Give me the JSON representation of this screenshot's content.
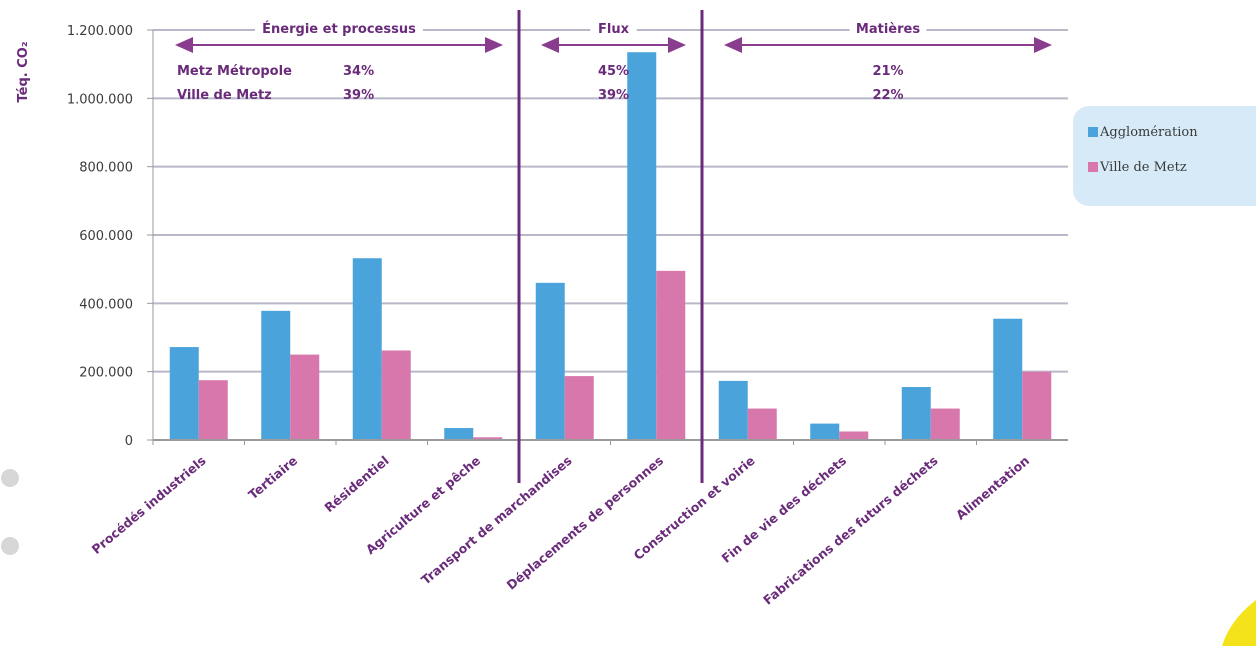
{
  "chart_data": {
    "type": "bar",
    "ylabel": "Téq. CO₂",
    "ylim": [
      0,
      1200000
    ],
    "yticks": [
      {
        "value": 0,
        "label": "0"
      },
      {
        "value": 200000,
        "label": "200.000"
      },
      {
        "value": 400000,
        "label": "400.000"
      },
      {
        "value": 600000,
        "label": "600.000"
      },
      {
        "value": 800000,
        "label": "800.000"
      },
      {
        "value": 1000000,
        "label": "1.000.000"
      },
      {
        "value": 1200000,
        "label": "1.200.000"
      }
    ],
    "grid": true,
    "legend_position": "right",
    "categories": [
      "Procédés industriels",
      "Tertiaire",
      "Résidentiel",
      "Agriculture et pêche",
      "Transport de marchandises",
      "Déplacements de personnes",
      "Construction et voirie",
      "Fin de vie des déchets",
      "Fabrications des futurs déchets",
      "Alimentation"
    ],
    "series": [
      {
        "name": "Agglomération",
        "color": "#4aa3db",
        "values": [
          272000,
          378000,
          532000,
          35000,
          460000,
          1135000,
          173000,
          48000,
          155000,
          355000
        ]
      },
      {
        "name": "Ville de Metz",
        "color": "#d877ab",
        "values": [
          175000,
          250000,
          262000,
          8000,
          187000,
          495000,
          92000,
          25000,
          92000,
          200000
        ]
      }
    ],
    "sections": [
      {
        "title": "Énergie et processus",
        "start": 0,
        "end": 3,
        "lines": [
          {
            "label": "Metz Métropole",
            "value": "34%"
          },
          {
            "label": "Ville de Metz",
            "value": "39%"
          }
        ]
      },
      {
        "title": "Flux",
        "start": 4,
        "end": 5,
        "lines": [
          {
            "label": "",
            "value": "45%"
          },
          {
            "label": "",
            "value": "39%"
          }
        ]
      },
      {
        "title": "Matières",
        "start": 6,
        "end": 9,
        "lines": [
          {
            "label": "",
            "value": "21%"
          },
          {
            "label": "",
            "value": "22%"
          }
        ]
      }
    ]
  }
}
